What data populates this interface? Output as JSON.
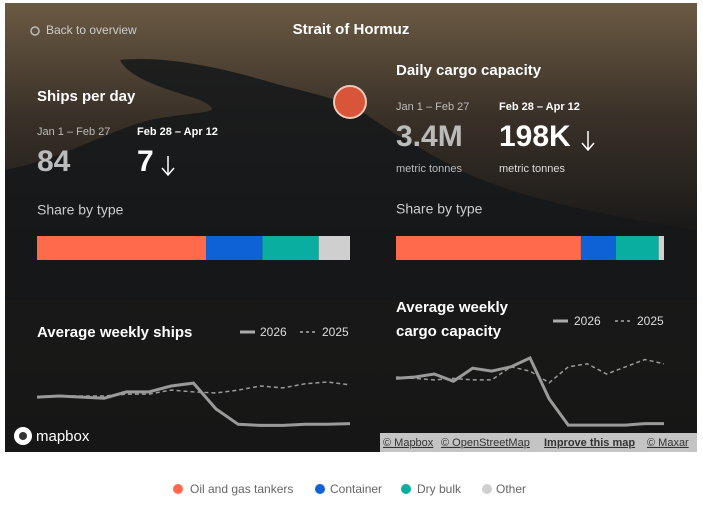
{
  "header": {
    "back": "Back to overview",
    "title": "Strait of Hormuz"
  },
  "types": [
    {
      "name": "Oil and gas tankers",
      "color": "#ff6b4a"
    },
    {
      "name": "Container",
      "color": "#0f62d6"
    },
    {
      "name": "Dry bulk",
      "color": "#0aaea0"
    },
    {
      "name": "Other",
      "color": "#cfcfcf"
    }
  ],
  "ships": {
    "title": "Ships per day",
    "periods": [
      {
        "label": "Jan 1 – Feb 27",
        "value": 84
      },
      {
        "label": "Feb 28 – Apr 12",
        "value": 7
      }
    ],
    "share_label": "Share by type",
    "shares": [
      54,
      18,
      18,
      10
    ],
    "chart": {
      "title": "Average weekly ships",
      "series": [
        {
          "name": "2026",
          "color": "#9a9a9a",
          "dashed": false,
          "values": [
            84,
            87,
            84,
            81,
            98,
            98,
            114,
            122,
            52,
            10,
            7,
            7,
            10,
            10,
            12
          ]
        },
        {
          "name": "2025",
          "color": "#9a9a9a",
          "dashed": true,
          "values": [
            84,
            87,
            87,
            87,
            92,
            92,
            103,
            98,
            95,
            103,
            114,
            109,
            120,
            125,
            117
          ]
        }
      ]
    }
  },
  "cargo": {
    "title": "Daily cargo capacity",
    "periods": [
      {
        "label": "Jan 1 – Feb 27",
        "value": "3.4M",
        "unit": "metric tonnes"
      },
      {
        "label": "Feb 28 – Apr 12",
        "value": "198K",
        "unit": "metric tonnes"
      }
    ],
    "share_label": "Share by type",
    "shares": [
      69,
      13,
      16,
      2
    ],
    "chart": {
      "title": "Average weekly cargo capacity",
      "series": [
        {
          "name": "2026",
          "color": "#9a9a9a",
          "dashed": false,
          "values": [
            3.4,
            3.5,
            3.7,
            3.2,
            4.1,
            3.9,
            4.2,
            4.8,
            2.0,
            0.2,
            0.2,
            0.2,
            0.2,
            0.3,
            0.3
          ]
        },
        {
          "name": "2025",
          "color": "#9a9a9a",
          "dashed": true,
          "values": [
            3.5,
            3.4,
            3.3,
            3.4,
            3.3,
            3.3,
            4.2,
            3.9,
            3.1,
            4.2,
            4.4,
            3.7,
            4.2,
            4.7,
            4.4
          ]
        }
      ]
    }
  },
  "map": {
    "logo": "mapbox",
    "attribution": [
      "© Mapbox",
      "© OpenStreetMap",
      "Improve this map",
      "© Maxar"
    ]
  }
}
